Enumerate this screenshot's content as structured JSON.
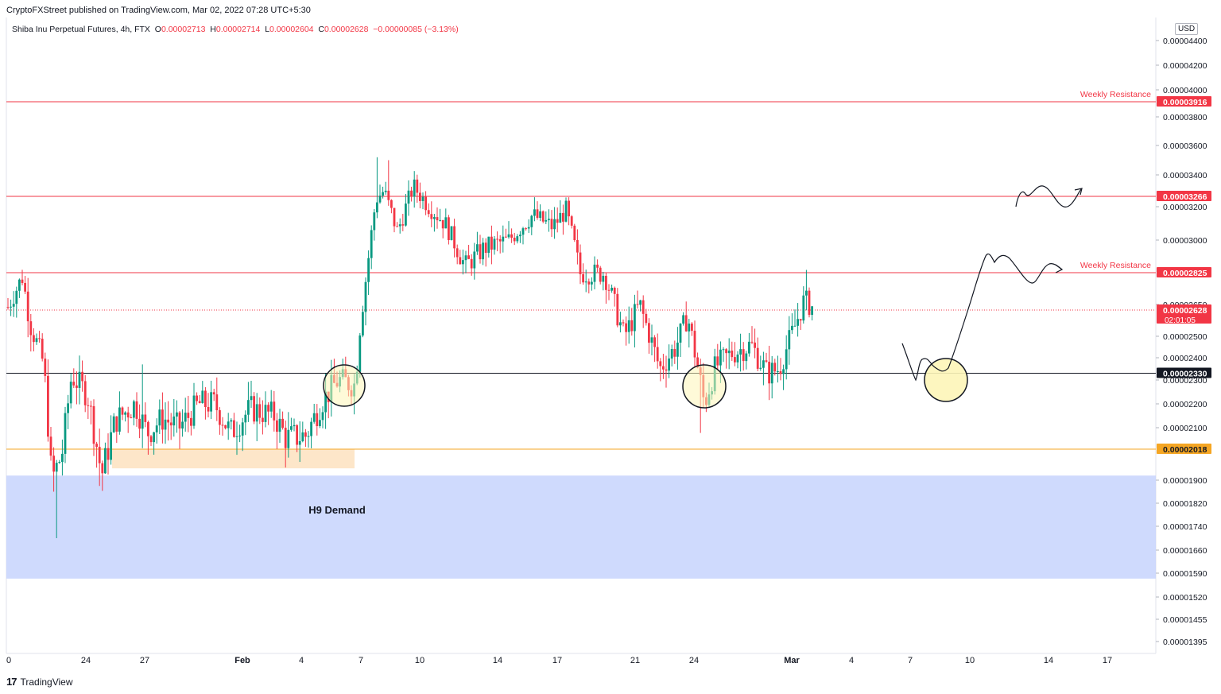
{
  "header": {
    "published": "CryptoFXStreet published on TradingView.com, Mar 02, 2022 07:28 UTC+5:30"
  },
  "legend": {
    "symbol": "Shiba Inu Perpetual Futures, 4h, FTX",
    "open_label": "O",
    "open": "0.00002713",
    "high_label": "H",
    "high": "0.00002714",
    "low_label": "L",
    "low": "0.00002604",
    "close_label": "C",
    "close": "0.00002628",
    "change": "−0.00000085 (−3.13%)"
  },
  "currency": "USD",
  "brand": "TradingView",
  "colors": {
    "up": "#089981",
    "down": "#f23645",
    "resistance_line": "#f23645",
    "support_line": "#131722",
    "demand_zone": "#c7d4fd",
    "small_demand": "#fde3c3",
    "orange_line": "#f5a623",
    "circle_fill": "#fdf5b8"
  },
  "chart_data": {
    "type": "candlestick",
    "timeframe": "4h",
    "x_axis_ticks": [
      "0",
      "24",
      "27",
      "Feb",
      "4",
      "7",
      "10",
      "14",
      "17",
      "21",
      "24",
      "Mar",
      "4",
      "7",
      "10",
      "14",
      "17"
    ],
    "y_axis_ticks": [
      "0.00004400",
      "0.00004200",
      "0.00004000",
      "0.00003800",
      "0.00003600",
      "0.00003400",
      "0.00003200",
      "0.00003000",
      "0.00002650",
      "0.00002500",
      "0.00002400",
      "0.00002300",
      "0.00002200",
      "0.00002100",
      "0.00001900",
      "0.00001820",
      "0.00001740",
      "0.00001660",
      "0.00001590",
      "0.00001520",
      "0.00001455",
      "0.00001395"
    ],
    "price_labels": [
      {
        "value": "0.00003916",
        "kind": "resistance"
      },
      {
        "value": "0.00003266",
        "kind": "resistance"
      },
      {
        "value": "0.00002825",
        "kind": "resistance"
      },
      {
        "value": "0.00002628",
        "kind": "last",
        "countdown": "02:01:05"
      },
      {
        "value": "0.00002330",
        "kind": "support"
      },
      {
        "value": "0.00002018",
        "kind": "demand"
      }
    ],
    "annotations": {
      "weekly_resistance_1": "Weekly Resistance",
      "weekly_resistance_2": "Weekly Resistance",
      "demand_zone": "H9 Demand"
    },
    "summary": {
      "swing_high": 3.52e-05,
      "swing_low": 1.7e-05,
      "last_close": 2.628e-05
    }
  }
}
